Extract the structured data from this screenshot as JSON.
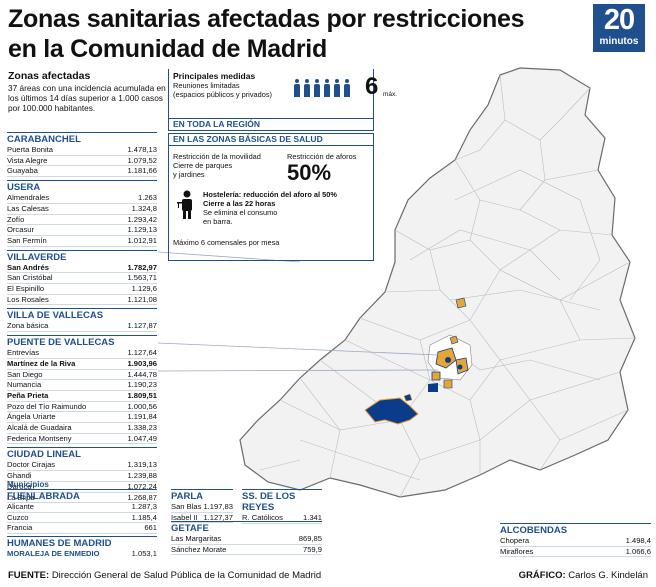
{
  "title": {
    "line1": "Zonas sanitarias afectadas por restricciones",
    "line2": "en la Comunidad de Madrid"
  },
  "logo": {
    "number": "20",
    "word": "minutos"
  },
  "intro": {
    "heading": "Zonas afectadas",
    "text": "37 áreas con una incidencia acumulada en los últimos 14 días superior a 1.000 casos por 100.000 habitantes."
  },
  "districts": [
    {
      "name": "CARABANCHEL",
      "rows": [
        {
          "n": "Puerta Bonita",
          "v": "1.478,13",
          "b": false
        },
        {
          "n": "Vista Alegre",
          "v": "1.079,52",
          "b": false
        },
        {
          "n": "Guayaba",
          "v": "1.181,66",
          "b": false
        }
      ]
    },
    {
      "name": "USERA",
      "rows": [
        {
          "n": "Almendrales",
          "v": "1.263",
          "b": false
        },
        {
          "n": "Las Calesas",
          "v": "1.324,8",
          "b": false
        },
        {
          "n": "Zofío",
          "v": "1.293,42",
          "b": false
        },
        {
          "n": "Orcasur",
          "v": "1.129,13",
          "b": false
        },
        {
          "n": "San Fermín",
          "v": "1.012,91",
          "b": false
        }
      ]
    },
    {
      "name": "VILLAVERDE",
      "rows": [
        {
          "n": "San Andrés",
          "v": "1.782,97",
          "b": true
        },
        {
          "n": "San Cristóbal",
          "v": "1.563,71",
          "b": false
        },
        {
          "n": "El Espinillo",
          "v": "1.129,6",
          "b": false
        },
        {
          "n": "Los Rosales",
          "v": "1.121,08",
          "b": false
        }
      ]
    },
    {
      "name": "VILLA DE VALLECAS",
      "rows": [
        {
          "n": "Zona básica",
          "v": "1.127,87",
          "b": false
        }
      ]
    },
    {
      "name": "PUENTE DE VALLECAS",
      "rows": [
        {
          "n": "Entrevías",
          "v": "1.127,64",
          "b": false
        },
        {
          "n": "Martínez de la Riva",
          "v": "1.903,96",
          "b": true
        },
        {
          "n": "San Diego",
          "v": "1.444,78",
          "b": false
        },
        {
          "n": "Numancia",
          "v": "1.190,23",
          "b": false
        },
        {
          "n": "Peña Prieta",
          "v": "1.809,51",
          "b": true
        },
        {
          "n": "Pozo del Tío Raimundo",
          "v": "1.000,56",
          "b": false
        },
        {
          "n": "Ángela Uriarte",
          "v": "1.191,84",
          "b": false
        },
        {
          "n": "Alcalá de Guadaira",
          "v": "1.338,23",
          "b": false
        },
        {
          "n": "Federica Montseny",
          "v": "1.047,49",
          "b": false
        }
      ]
    },
    {
      "name": "CIUDAD LINEAL",
      "rows": [
        {
          "n": "Doctor Cirajas",
          "v": "1.319,13",
          "b": false
        },
        {
          "n": "Ghandi",
          "v": "1.239,88",
          "b": false
        },
        {
          "n": "Daroca",
          "v": "1.072,24",
          "b": false
        },
        {
          "n": "La Elipa",
          "v": "1.268,87",
          "b": false
        }
      ]
    }
  ],
  "municipios": {
    "label": "Municipios",
    "fuenlabrada": {
      "name": "FUENLABRADA",
      "rows": [
        {
          "n": "Alicante",
          "v": "1.287,3"
        },
        {
          "n": "Cuzco",
          "v": "1.185,4"
        },
        {
          "n": "Francia",
          "v": "661"
        }
      ]
    },
    "humanes": {
      "name1": "HUMANES DE MADRID",
      "name2": "MORALEJA DE ENMEDIO",
      "value": "1.053,1"
    },
    "parla": {
      "name": "PARLA",
      "rows": [
        {
          "n": "San Blas",
          "v": "1.197,83"
        },
        {
          "n": "Isabel II",
          "v": "1.127,37"
        }
      ]
    },
    "ssreyes": {
      "name": "SS. DE LOS REYES",
      "rows": [
        {
          "n": "R. Católicos",
          "v": "1.341"
        }
      ]
    },
    "getafe": {
      "name": "GETAFE",
      "rows": [
        {
          "n": "Las Margaritas",
          "v": "869,85"
        },
        {
          "n": "Sánchez Morate",
          "v": "759,9"
        }
      ]
    },
    "alcobendas": {
      "name": "ALCOBENDAS",
      "rows": [
        {
          "n": "Chopera",
          "v": "1.498,4"
        },
        {
          "n": "Miraflores",
          "v": "1.066,6"
        }
      ]
    }
  },
  "measures": {
    "heading": "Principales medidas",
    "meetings": "Reuniones limitadas",
    "meetings_sub": "(espacios públicos y privados)",
    "max_number": "6",
    "max_label": "máx.",
    "region_band": "EN TODA LA REGIÓN",
    "zones_band": "EN LAS ZONAS BÁSICAS DE SALUD",
    "mobility1": "Restricción de la movilidad",
    "mobility2": "Cierre de parques",
    "mobility3": "y jardines",
    "capacity": "Restricción de aforos",
    "capacity_value": "50%",
    "hosteleria1": "Hostelería: reducción del aforo al 50%",
    "hosteleria2": "Cierre a las 22 horas",
    "hosteleria3": "Se elimina el consumo",
    "hosteleria4": "en barra.",
    "diners": "Máximo 6 comensales por mesa"
  },
  "footer": {
    "source_label": "FUENTE:",
    "source": "Dirección General de Salud Pública de la Comunidad de Madrid",
    "graphic_label": "GRÁFICO:",
    "graphic": "Carlos G. Kindelán"
  },
  "colors": {
    "accent": "#1f4f8c",
    "highlight": "#e8a531",
    "mapfill": "#0b3c8c"
  }
}
